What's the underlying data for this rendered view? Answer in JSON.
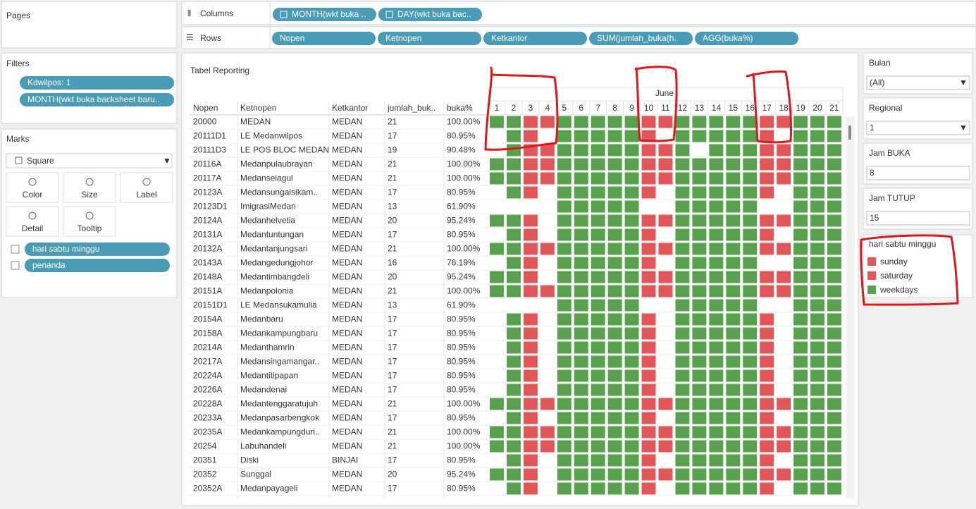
{
  "shelves": {
    "columns_label": "Columns",
    "columns": [
      "MONTH(wkt buka ..",
      "DAY(wkt buka bac.."
    ],
    "rows_label": "Rows",
    "rows": [
      "Nopen",
      "Ketnopen",
      "Ketkantor",
      "SUM(jumlah_buka(h..",
      "AGG(buka%)"
    ]
  },
  "pages": {
    "title": "Pages"
  },
  "filters": {
    "title": "Filters",
    "items": [
      "Kdwilpos: 1",
      "MONTH(wkt buka backsheet baru.."
    ]
  },
  "marks": {
    "title": "Marks",
    "type": "Square",
    "buttons": [
      "Color",
      "Size",
      "Label",
      "Detail",
      "Tooltip"
    ],
    "fields": [
      "hari sabtu minggu",
      "penanda"
    ]
  },
  "view": {
    "title": "Tabel Reporting",
    "headers": [
      "Nopen",
      "Ketnopen",
      "Ketkantor",
      "jumlah_buk..",
      "buka%"
    ],
    "month": "June",
    "days": [
      1,
      2,
      3,
      4,
      5,
      6,
      7,
      8,
      9,
      10,
      11,
      12,
      13,
      14,
      15,
      16,
      17,
      18,
      19,
      20,
      21
    ],
    "day_type": [
      2,
      2,
      1,
      0,
      2,
      2,
      2,
      2,
      2,
      1,
      0,
      2,
      2,
      2,
      2,
      2,
      1,
      0,
      2,
      2,
      2
    ],
    "rows": [
      {
        "nopen": "20000",
        "ketnopen": "MEDAN",
        "ketkantor": "MEDAN",
        "jumlah": 21,
        "buka": "100.00%",
        "open_days": [
          1,
          2,
          3,
          4,
          5,
          6,
          7,
          8,
          9,
          10,
          11,
          12,
          13,
          14,
          15,
          16,
          17,
          18,
          19,
          20,
          21
        ]
      },
      {
        "nopen": "20111D1",
        "ketnopen": "LE Medanwilpos",
        "ketkantor": "MEDAN",
        "jumlah": 17,
        "buka": "80.95%",
        "open_days": [
          2,
          3,
          5,
          6,
          7,
          8,
          9,
          10,
          12,
          13,
          14,
          15,
          16,
          17,
          19,
          20,
          21
        ]
      },
      {
        "nopen": "20111D3",
        "ketnopen": "LE POS BLOC MEDAN",
        "ketkantor": "MEDAN",
        "jumlah": 19,
        "buka": "90.48%",
        "open_days": [
          2,
          3,
          4,
          5,
          6,
          7,
          8,
          9,
          10,
          11,
          12,
          14,
          15,
          16,
          17,
          18,
          19,
          20,
          21
        ]
      },
      {
        "nopen": "20116A",
        "ketnopen": "Medanpulaubrayan",
        "ketkantor": "MEDAN",
        "jumlah": 21,
        "buka": "100.00%",
        "open_days": [
          1,
          2,
          3,
          4,
          5,
          6,
          7,
          8,
          9,
          10,
          11,
          12,
          13,
          14,
          15,
          16,
          17,
          18,
          19,
          20,
          21
        ]
      },
      {
        "nopen": "20117A",
        "ketnopen": "Medanseiagul",
        "ketkantor": "MEDAN",
        "jumlah": 21,
        "buka": "100.00%",
        "open_days": [
          1,
          2,
          3,
          4,
          5,
          6,
          7,
          8,
          9,
          10,
          11,
          12,
          13,
          14,
          15,
          16,
          17,
          18,
          19,
          20,
          21
        ]
      },
      {
        "nopen": "20123A",
        "ketnopen": "Medansungaisikam..",
        "ketkantor": "MEDAN",
        "jumlah": 17,
        "buka": "80.95%",
        "open_days": [
          2,
          3,
          5,
          6,
          7,
          8,
          9,
          10,
          12,
          13,
          14,
          15,
          16,
          17,
          19,
          20,
          21
        ]
      },
      {
        "nopen": "20123D1",
        "ketnopen": "ImigrasiMedan",
        "ketkantor": "MEDAN",
        "jumlah": 13,
        "buka": "61.90%",
        "open_days": [
          5,
          6,
          7,
          8,
          9,
          12,
          13,
          14,
          15,
          16,
          19,
          20,
          21
        ]
      },
      {
        "nopen": "20124A",
        "ketnopen": "Medanhelvetia",
        "ketkantor": "MEDAN",
        "jumlah": 20,
        "buka": "95.24%",
        "open_days": [
          1,
          2,
          3,
          5,
          6,
          7,
          8,
          9,
          10,
          11,
          12,
          13,
          14,
          15,
          16,
          17,
          18,
          19,
          20,
          21
        ]
      },
      {
        "nopen": "20131A",
        "ketnopen": "Medantuntungan",
        "ketkantor": "MEDAN",
        "jumlah": 17,
        "buka": "80.95%",
        "open_days": [
          2,
          3,
          5,
          6,
          7,
          8,
          9,
          10,
          12,
          13,
          14,
          15,
          16,
          17,
          19,
          20,
          21
        ]
      },
      {
        "nopen": "20132A",
        "ketnopen": "Medantanjungsari",
        "ketkantor": "MEDAN",
        "jumlah": 21,
        "buka": "100.00%",
        "open_days": [
          1,
          2,
          3,
          4,
          5,
          6,
          7,
          8,
          9,
          10,
          11,
          12,
          13,
          14,
          15,
          16,
          17,
          18,
          19,
          20,
          21
        ]
      },
      {
        "nopen": "20143A",
        "ketnopen": "Medangedungjohor",
        "ketkantor": "MEDAN",
        "jumlah": 16,
        "buka": "76.19%",
        "open_days": [
          2,
          3,
          5,
          6,
          7,
          8,
          9,
          10,
          12,
          13,
          14,
          15,
          16,
          19,
          20,
          21
        ]
      },
      {
        "nopen": "20148A",
        "ketnopen": "Medantimbangdeli",
        "ketkantor": "MEDAN",
        "jumlah": 20,
        "buka": "95.24%",
        "open_days": [
          1,
          2,
          3,
          5,
          6,
          7,
          8,
          9,
          10,
          11,
          12,
          13,
          14,
          15,
          16,
          17,
          18,
          19,
          20,
          21
        ]
      },
      {
        "nopen": "20151A",
        "ketnopen": "Medanpolonia",
        "ketkantor": "MEDAN",
        "jumlah": 21,
        "buka": "100.00%",
        "open_days": [
          1,
          2,
          3,
          4,
          5,
          6,
          7,
          8,
          9,
          10,
          11,
          12,
          13,
          14,
          15,
          16,
          17,
          18,
          19,
          20,
          21
        ]
      },
      {
        "nopen": "20151D1",
        "ketnopen": "LE Medansukamulia",
        "ketkantor": "MEDAN",
        "jumlah": 13,
        "buka": "61.90%",
        "open_days": [
          5,
          6,
          7,
          8,
          9,
          12,
          13,
          14,
          15,
          16,
          19,
          20,
          21
        ]
      },
      {
        "nopen": "20154A",
        "ketnopen": "Medanbaru",
        "ketkantor": "MEDAN",
        "jumlah": 17,
        "buka": "80.95%",
        "open_days": [
          2,
          3,
          5,
          6,
          7,
          8,
          9,
          10,
          12,
          13,
          14,
          15,
          16,
          17,
          19,
          20,
          21
        ]
      },
      {
        "nopen": "20158A",
        "ketnopen": "Medankampungbaru",
        "ketkantor": "MEDAN",
        "jumlah": 17,
        "buka": "80.95%",
        "open_days": [
          2,
          3,
          5,
          6,
          7,
          8,
          9,
          10,
          12,
          13,
          14,
          15,
          16,
          17,
          19,
          20,
          21
        ]
      },
      {
        "nopen": "20214A",
        "ketnopen": "Medanthamrin",
        "ketkantor": "MEDAN",
        "jumlah": 17,
        "buka": "80.95%",
        "open_days": [
          2,
          3,
          5,
          6,
          7,
          8,
          9,
          10,
          12,
          13,
          14,
          15,
          16,
          17,
          19,
          20,
          21
        ]
      },
      {
        "nopen": "20217A",
        "ketnopen": "Medansingamangar..",
        "ketkantor": "MEDAN",
        "jumlah": 17,
        "buka": "80.95%",
        "open_days": [
          2,
          3,
          5,
          6,
          7,
          8,
          9,
          10,
          12,
          13,
          14,
          15,
          16,
          17,
          19,
          20,
          21
        ]
      },
      {
        "nopen": "20224A",
        "ketnopen": "Medantitipapan",
        "ketkantor": "MEDAN",
        "jumlah": 17,
        "buka": "80.95%",
        "open_days": [
          2,
          3,
          5,
          6,
          7,
          8,
          9,
          10,
          12,
          13,
          14,
          15,
          16,
          17,
          19,
          20,
          21
        ]
      },
      {
        "nopen": "20226A",
        "ketnopen": "Medandenai",
        "ketkantor": "MEDAN",
        "jumlah": 17,
        "buka": "80.95%",
        "open_days": [
          2,
          3,
          5,
          6,
          7,
          8,
          9,
          10,
          12,
          13,
          14,
          15,
          16,
          17,
          19,
          20,
          21
        ]
      },
      {
        "nopen": "20228A",
        "ketnopen": "Medantenggaratujuh",
        "ketkantor": "MEDAN",
        "jumlah": 21,
        "buka": "100.00%",
        "open_days": [
          1,
          2,
          3,
          4,
          5,
          6,
          7,
          8,
          9,
          10,
          11,
          12,
          13,
          14,
          15,
          16,
          17,
          18,
          19,
          20,
          21
        ]
      },
      {
        "nopen": "20233A",
        "ketnopen": "Medanpasarbengkok",
        "ketkantor": "MEDAN",
        "jumlah": 17,
        "buka": "80.95%",
        "open_days": [
          2,
          3,
          5,
          6,
          7,
          8,
          9,
          10,
          12,
          13,
          14,
          15,
          16,
          17,
          19,
          20,
          21
        ]
      },
      {
        "nopen": "20235A",
        "ketnopen": "Medankampungduri..",
        "ketkantor": "MEDAN",
        "jumlah": 21,
        "buka": "100.00%",
        "open_days": [
          1,
          2,
          3,
          4,
          5,
          6,
          7,
          8,
          9,
          10,
          11,
          12,
          13,
          14,
          15,
          16,
          17,
          18,
          19,
          20,
          21
        ]
      },
      {
        "nopen": "20254",
        "ketnopen": "Labuhandeli",
        "ketkantor": "MEDAN",
        "jumlah": 21,
        "buka": "100.00%",
        "open_days": [
          1,
          2,
          3,
          4,
          5,
          6,
          7,
          8,
          9,
          10,
          11,
          12,
          13,
          14,
          15,
          16,
          17,
          18,
          19,
          20,
          21
        ]
      },
      {
        "nopen": "20351",
        "ketnopen": "Diski",
        "ketkantor": "BINJAI",
        "jumlah": 17,
        "buka": "80.95%",
        "open_days": [
          2,
          3,
          5,
          6,
          7,
          8,
          9,
          10,
          12,
          13,
          14,
          15,
          16,
          17,
          19,
          20,
          21
        ]
      },
      {
        "nopen": "20352",
        "ketnopen": "Sunggal",
        "ketkantor": "MEDAN",
        "jumlah": 20,
        "buka": "95.24%",
        "open_days": [
          1,
          2,
          3,
          5,
          6,
          7,
          8,
          9,
          10,
          11,
          12,
          13,
          14,
          15,
          16,
          17,
          18,
          19,
          20,
          21
        ]
      },
      {
        "nopen": "20352A",
        "ketnopen": "Medanpayageli",
        "ketkantor": "MEDAN",
        "jumlah": 17,
        "buka": "80.95%",
        "open_days": [
          2,
          3,
          5,
          6,
          7,
          8,
          9,
          10,
          12,
          13,
          14,
          15,
          16,
          17,
          19,
          20,
          21
        ]
      }
    ]
  },
  "legend": {
    "title": "hari sabtu minggu",
    "items": [
      {
        "label": "sunday",
        "color": "#e15759"
      },
      {
        "label": "saturday",
        "color": "#e15759"
      },
      {
        "label": "weekdays",
        "color": "#59a14f"
      }
    ]
  },
  "controls": [
    {
      "label": "Bulan",
      "value": "(All)",
      "kind": "dropdown"
    },
    {
      "label": "Regional",
      "value": "1",
      "kind": "dropdown"
    },
    {
      "label": "Jam BUKA",
      "value": "8",
      "kind": "input"
    },
    {
      "label": "Jam TUTUP",
      "value": "15",
      "kind": "input"
    }
  ]
}
